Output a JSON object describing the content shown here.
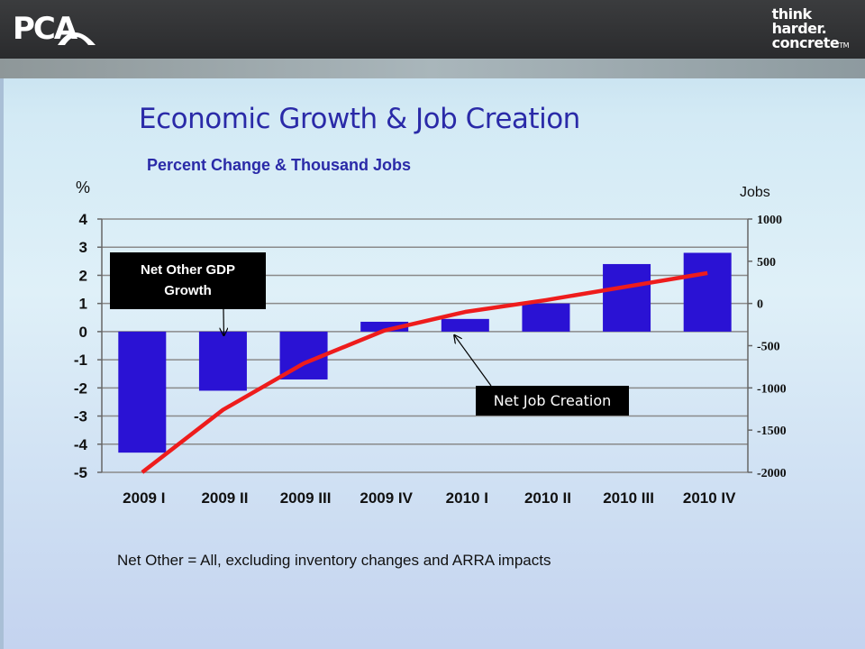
{
  "header": {
    "logo_text": "PCA",
    "tagline_line1": "think",
    "tagline_line2": "harder.",
    "tagline_line3": "concrete",
    "tagline_tm": "TM"
  },
  "chart_data": {
    "type": "bar",
    "title": "Economic Growth & Job Creation",
    "subtitle": "Percent Change & Thousand Jobs",
    "ylabel": "%",
    "y2label": "Jobs",
    "categories": [
      "2009 I",
      "2009 II",
      "2009 III",
      "2009 IV",
      "2010 I",
      "2010 II",
      "2010 III",
      "2010 IV"
    ],
    "ylim": [
      -5,
      4
    ],
    "yticks": [
      4,
      3,
      2,
      1,
      0,
      -1,
      -2,
      -3,
      -4,
      -5
    ],
    "y2lim": [
      -2000,
      1000
    ],
    "y2ticks": [
      1000,
      500,
      0,
      -500,
      -1000,
      -1500,
      -2000
    ],
    "grid": true,
    "series": [
      {
        "name": "Net Other GDP Growth",
        "type": "bar",
        "axis": "left",
        "color": "#2a12d4",
        "values": [
          -4.3,
          -2.1,
          -1.7,
          0.35,
          0.45,
          1.0,
          2.4,
          2.8
        ]
      },
      {
        "name": "Net Job Creation",
        "type": "line",
        "axis": "right",
        "color": "#ee1c1c",
        "values": [
          -2000,
          -1260,
          -710,
          -320,
          -100,
          40,
          200,
          360
        ]
      }
    ],
    "annotations": {
      "gdp_label_line1": "Net Other GDP",
      "gdp_label_line2": "Growth",
      "jobs_label": "Net Job Creation"
    },
    "footnote": "Net Other = All, excluding inventory changes and ARRA impacts"
  }
}
